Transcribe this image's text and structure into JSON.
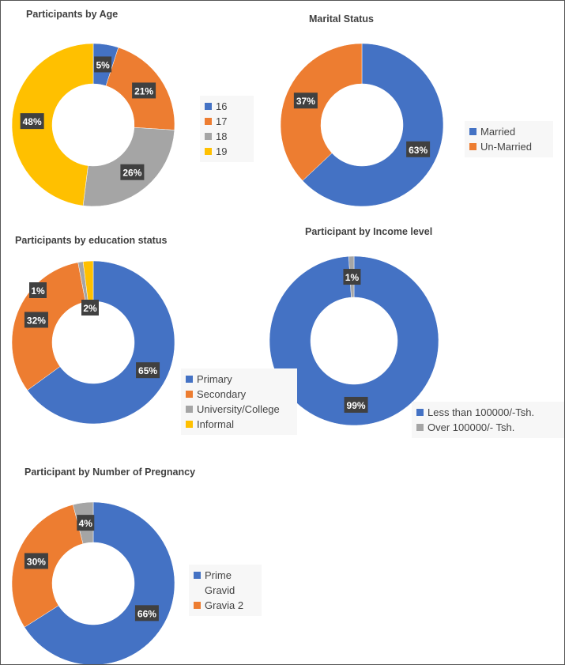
{
  "chart_data": [
    {
      "type": "pie",
      "donut": true,
      "title": "Participants by Age",
      "categories": [
        "16",
        "17",
        "18",
        "19"
      ],
      "values": [
        5,
        21,
        26,
        48
      ],
      "labels": [
        "5%",
        "21%",
        "26%",
        "48%"
      ],
      "colors": [
        "#4472c4",
        "#ed7d31",
        "#a5a5a5",
        "#ffc000"
      ],
      "legend": "right"
    },
    {
      "type": "pie",
      "donut": true,
      "title": "Marital Status",
      "categories": [
        "Married",
        "Un-Married"
      ],
      "values": [
        63,
        37
      ],
      "labels": [
        "63%",
        "37%"
      ],
      "colors": [
        "#4472c4",
        "#ed7d31"
      ],
      "legend": "right"
    },
    {
      "type": "pie",
      "donut": true,
      "title": "Participants by education status",
      "categories": [
        "Primary",
        "Secondary",
        "University/College",
        "Informal"
      ],
      "values": [
        65,
        32,
        1,
        2
      ],
      "labels": [
        "65%",
        "32%",
        "1%",
        "2%"
      ],
      "colors": [
        "#4472c4",
        "#ed7d31",
        "#a5a5a5",
        "#ffc000"
      ],
      "legend": "right"
    },
    {
      "type": "pie",
      "donut": true,
      "title": "Participant by Income level",
      "categories": [
        "Less than 100000/-Tsh.",
        "Over 100000/- Tsh."
      ],
      "values": [
        99,
        1
      ],
      "labels": [
        "99%",
        "1%"
      ],
      "colors": [
        "#4472c4",
        "#a5a5a5"
      ],
      "legend": "bottom-right"
    },
    {
      "type": "pie",
      "donut": true,
      "title": "Participant by Number of Pregnancy",
      "categories": [
        "Prime Gravid",
        "Gravia 2",
        ""
      ],
      "values": [
        66,
        30,
        4
      ],
      "labels": [
        "66%",
        "30%",
        "4%"
      ],
      "colors": [
        "#4472c4",
        "#ed7d31",
        "#a5a5a5"
      ],
      "legend": "right"
    }
  ]
}
